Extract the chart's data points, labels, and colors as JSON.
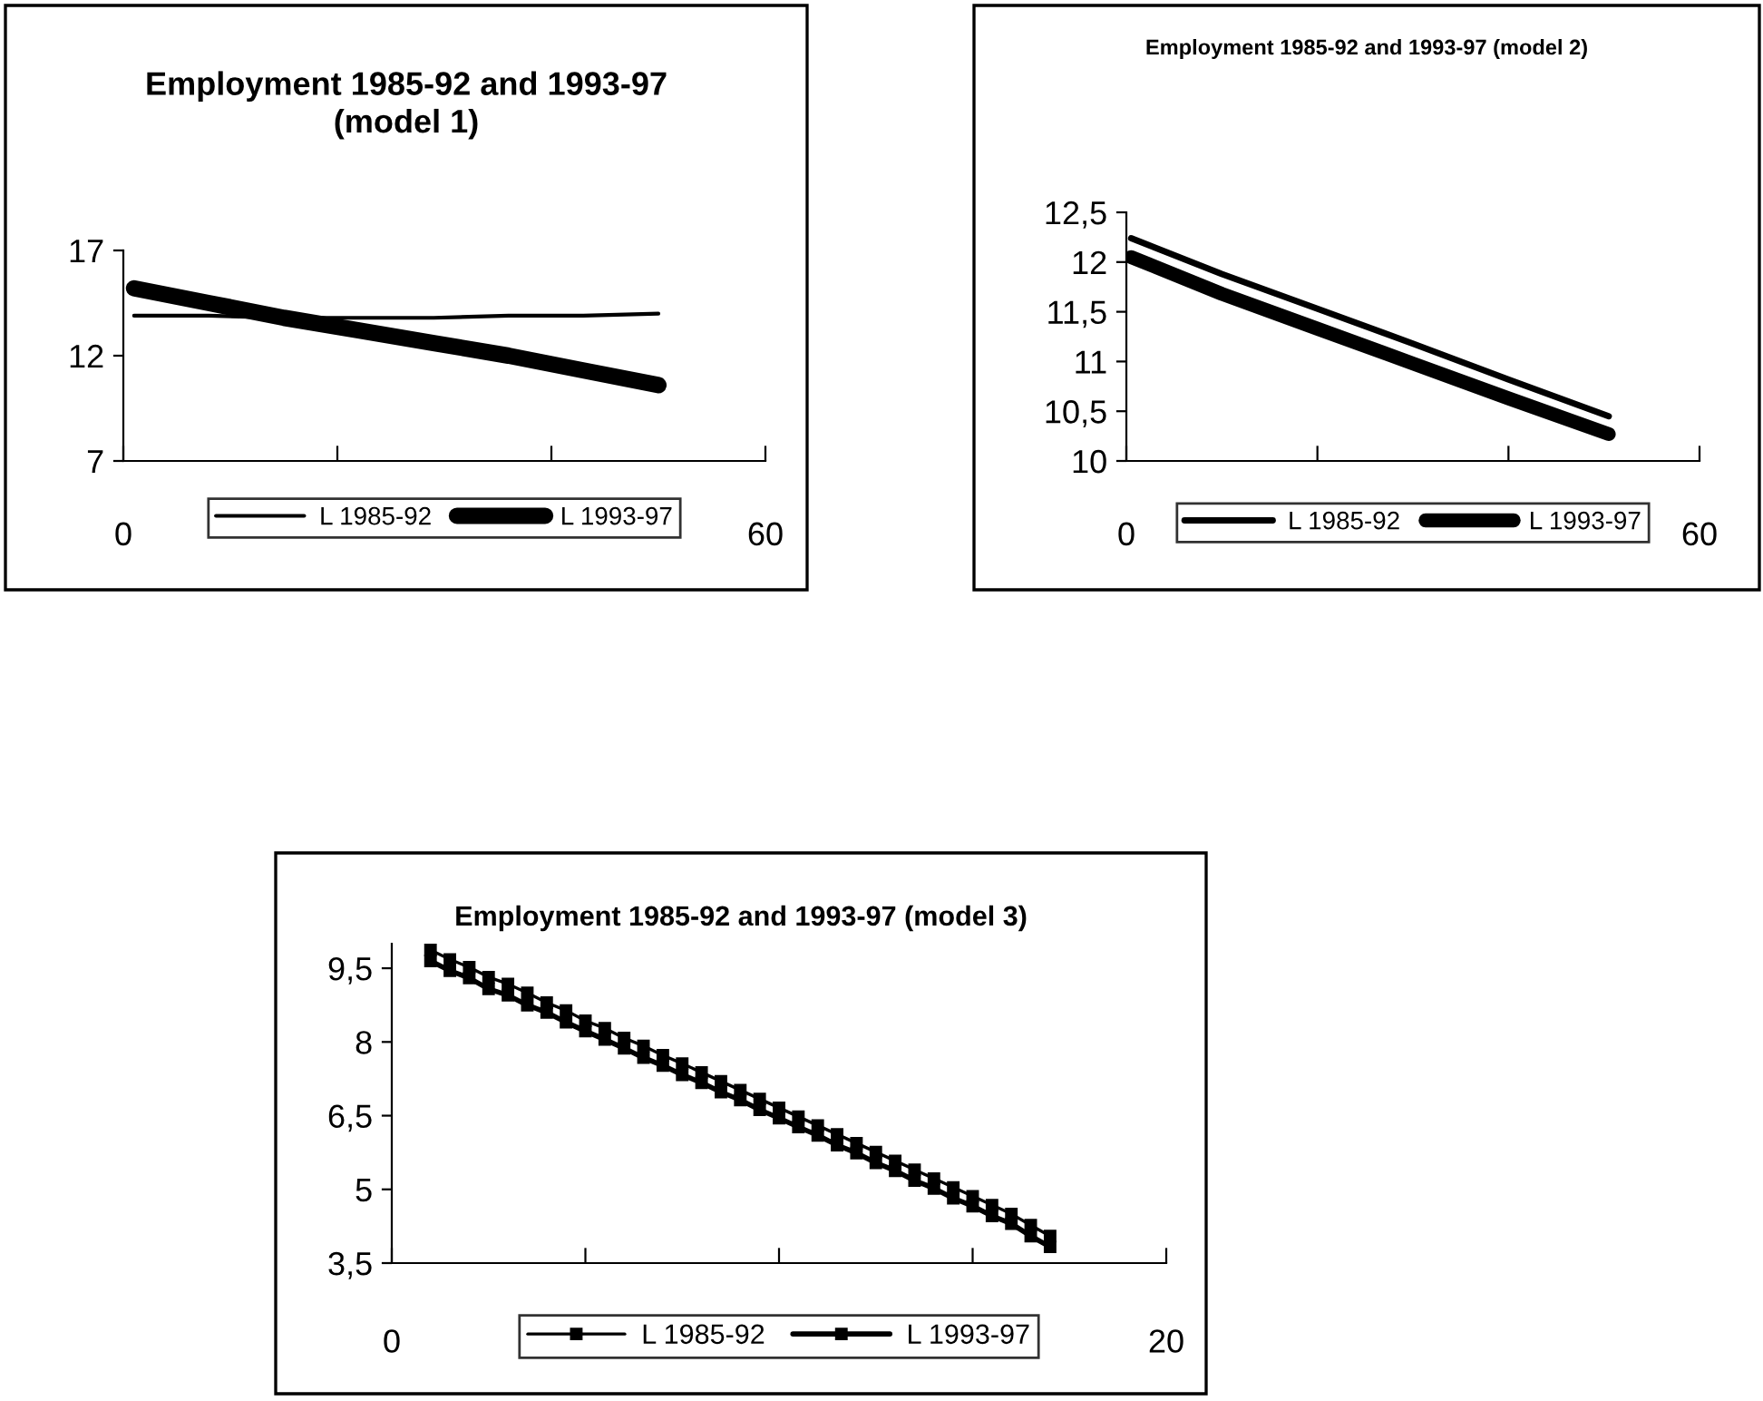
{
  "chart_data": [
    {
      "type": "line",
      "title": "Employment 1985-92 and 1993-97\n(model 1)",
      "x": [
        1,
        8,
        15,
        22,
        29,
        36,
        43,
        50
      ],
      "xlim": [
        0,
        60
      ],
      "xticks": [
        0,
        {
          "value": 20,
          "label": null
        },
        {
          "value": 40,
          "label": null
        },
        60
      ],
      "ylim": [
        7,
        17
      ],
      "yticks": [
        7,
        12,
        17
      ],
      "grid": false,
      "legend": "bottom",
      "marker": "none",
      "line_style": "solid",
      "series": [
        {
          "name": "L 1985-92",
          "color": "#000000",
          "values": [
            13.9,
            13.9,
            13.8,
            13.8,
            13.8,
            13.9,
            13.9,
            14.0
          ]
        },
        {
          "name": "L 1993-97",
          "color": "#000000",
          "values": [
            15.2,
            14.5,
            13.8,
            13.2,
            12.6,
            12.0,
            11.3,
            10.6
          ]
        }
      ]
    },
    {
      "type": "line",
      "title": "Employment 1985-92 and 1993-97 (model 2)",
      "x": [
        0.5,
        10,
        20,
        30,
        40,
        50.5
      ],
      "xlim": [
        0,
        60
      ],
      "xticks": [
        0,
        {
          "value": 20,
          "label": null
        },
        {
          "value": 40,
          "label": null
        },
        60
      ],
      "ylim": [
        10,
        12.5
      ],
      "yticks": [
        {
          "value": 10,
          "label": "10"
        },
        {
          "value": 10.5,
          "label": "10,5"
        },
        {
          "value": 11,
          "label": "11"
        },
        {
          "value": 11.5,
          "label": "11,5"
        },
        {
          "value": 12,
          "label": "12"
        },
        {
          "value": 12.5,
          "label": "12,5"
        }
      ],
      "grid": false,
      "legend": "bottom",
      "marker": "none",
      "line_style": "solid",
      "series": [
        {
          "name": "L 1985-92",
          "color": "#000000",
          "values": [
            12.24,
            11.88,
            11.53,
            11.18,
            10.82,
            10.45
          ]
        },
        {
          "name": "L 1993-97",
          "color": "#000000",
          "values": [
            12.05,
            11.68,
            11.33,
            10.98,
            10.63,
            10.27
          ]
        }
      ]
    },
    {
      "type": "line",
      "title": "Employment 1985-92 and 1993-97 (model 3)",
      "x": [
        1,
        1.5,
        2,
        2.5,
        3,
        3.5,
        4,
        4.5,
        5,
        5.5,
        6,
        6.5,
        7,
        7.5,
        8,
        8.5,
        9,
        9.5,
        10,
        10.5,
        11,
        11.5,
        12,
        12.5,
        13,
        13.5,
        14,
        14.5,
        15,
        15.5,
        16,
        16.5,
        17
      ],
      "xlim": [
        0,
        20
      ],
      "xticks": [
        0,
        {
          "value": 5,
          "label": null
        },
        {
          "value": 10,
          "label": null
        },
        {
          "value": 15,
          "label": null
        },
        20
      ],
      "ylim": [
        3.5,
        10
      ],
      "yticks": [
        {
          "value": 3.5,
          "label": "3,5"
        },
        {
          "value": 5,
          "label": "5"
        },
        {
          "value": 6.5,
          "label": "6,5"
        },
        {
          "value": 8,
          "label": "8"
        },
        {
          "value": 9.5,
          "label": "9,5"
        }
      ],
      "grid": false,
      "legend": "bottom",
      "marker": "square",
      "line_style": "solid",
      "series": [
        {
          "name": "L 1985-92",
          "color": "#000000",
          "values": [
            9.87,
            9.68,
            9.52,
            9.32,
            9.18,
            9.0,
            8.8,
            8.64,
            8.43,
            8.28,
            8.08,
            7.92,
            7.73,
            7.56,
            7.38,
            7.2,
            7.02,
            6.84,
            6.66,
            6.48,
            6.3,
            6.12,
            5.94,
            5.76,
            5.58,
            5.4,
            5.22,
            5.04,
            4.86,
            4.68,
            4.5,
            4.27,
            4.05
          ]
        },
        {
          "name": "L 1993-97",
          "color": "#000000",
          "values": [
            9.65,
            9.45,
            9.3,
            9.08,
            8.95,
            8.75,
            8.6,
            8.4,
            8.22,
            8.05,
            7.87,
            7.68,
            7.52,
            7.33,
            7.17,
            6.98,
            6.82,
            6.62,
            6.45,
            6.27,
            6.1,
            5.9,
            5.74,
            5.54,
            5.38,
            5.18,
            5.02,
            4.82,
            4.66,
            4.46,
            4.3,
            4.05,
            3.83
          ]
        }
      ]
    }
  ]
}
